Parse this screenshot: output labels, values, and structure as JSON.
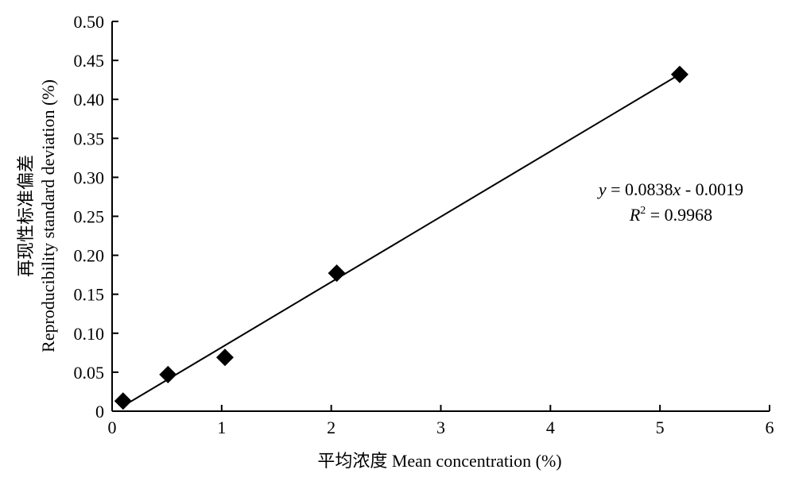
{
  "chart_data": {
    "type": "scatter",
    "xlabel": "平均浓度 Mean concentration (%)",
    "ylabel_cn": "再现性标准偏差",
    "ylabel_en": "Reproducibility standard deviation (%)",
    "xlim": [
      0,
      6
    ],
    "ylim": [
      0,
      0.5
    ],
    "x_ticks": [
      0,
      1,
      2,
      3,
      4,
      5,
      6
    ],
    "x_tick_labels": [
      "0",
      "1",
      "2",
      "3",
      "4",
      "5",
      "6"
    ],
    "y_ticks": [
      0,
      0.05,
      0.1,
      0.15,
      0.2,
      0.25,
      0.3,
      0.35,
      0.4,
      0.45,
      0.5
    ],
    "y_tick_labels": [
      "0",
      "0.05",
      "0.10",
      "0.15",
      "0.20",
      "0.25",
      "0.30",
      "0.35",
      "0.40",
      "0.45",
      "0.50"
    ],
    "grid": false,
    "marker": "diamond",
    "color": "#000000",
    "points": [
      {
        "x": 0.1,
        "y": 0.013
      },
      {
        "x": 0.51,
        "y": 0.047
      },
      {
        "x": 1.03,
        "y": 0.069
      },
      {
        "x": 2.05,
        "y": 0.177
      },
      {
        "x": 5.18,
        "y": 0.432
      }
    ],
    "fit": {
      "slope": 0.0838,
      "intercept": -0.0019,
      "x_range": [
        0.1,
        5.18
      ],
      "equation_y": "y",
      "equation_rest": " = 0.0838",
      "equation_x": "x",
      "equation_tail": " - 0.0019",
      "r2_R": "R",
      "r2_sup": "2",
      "r2_rest": " = 0.9968"
    }
  }
}
